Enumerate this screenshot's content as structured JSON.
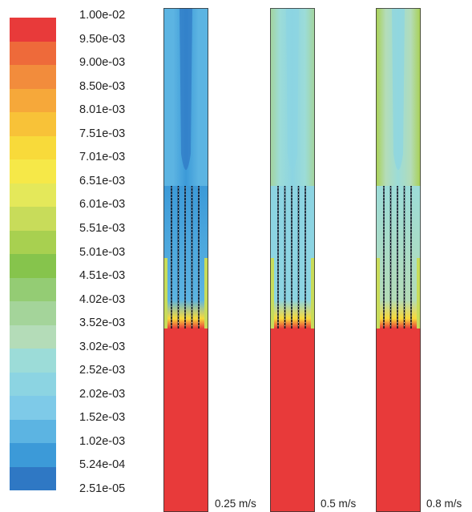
{
  "chart_data": {
    "type": "heatmap",
    "colorbar": {
      "levels": [
        "1.00e-02",
        "9.50e-03",
        "9.00e-03",
        "8.50e-03",
        "8.01e-03",
        "7.51e-03",
        "7.01e-03",
        "6.51e-03",
        "6.01e-03",
        "5.51e-03",
        "5.01e-03",
        "4.51e-03",
        "4.02e-03",
        "3.52e-03",
        "3.02e-03",
        "2.52e-03",
        "2.02e-03",
        "1.52e-03",
        "1.02e-03",
        "5.24e-04",
        "2.51e-05"
      ],
      "colors": [
        "#e83a3a",
        "#ee6a3a",
        "#f28c3c",
        "#f6a83a",
        "#f8c238",
        "#f8da3a",
        "#f6e848",
        "#e4e85a",
        "#c8dc5a",
        "#a8d050",
        "#86c44c",
        "#94cc74",
        "#a4d49a",
        "#b4dcb8",
        "#9cdcd8",
        "#8cd4e2",
        "#7ecae8",
        "#5cb4e2",
        "#3c9ad8",
        "#2f78c4"
      ],
      "range": [
        2.51e-05,
        0.01
      ]
    },
    "panels": [
      {
        "label": "0.25 m/s",
        "inlet_level": 0.045,
        "upper_level": 0.04,
        "upper_edge_level": 0.12
      },
      {
        "label": "0.5 m/s",
        "inlet_level": 0.17,
        "upper_level": 0.22,
        "upper_edge_level": 0.38
      },
      {
        "label": "0.8 m/s",
        "inlet_level": 0.23,
        "upper_level": 0.24,
        "upper_edge_level": 0.52
      }
    ]
  }
}
